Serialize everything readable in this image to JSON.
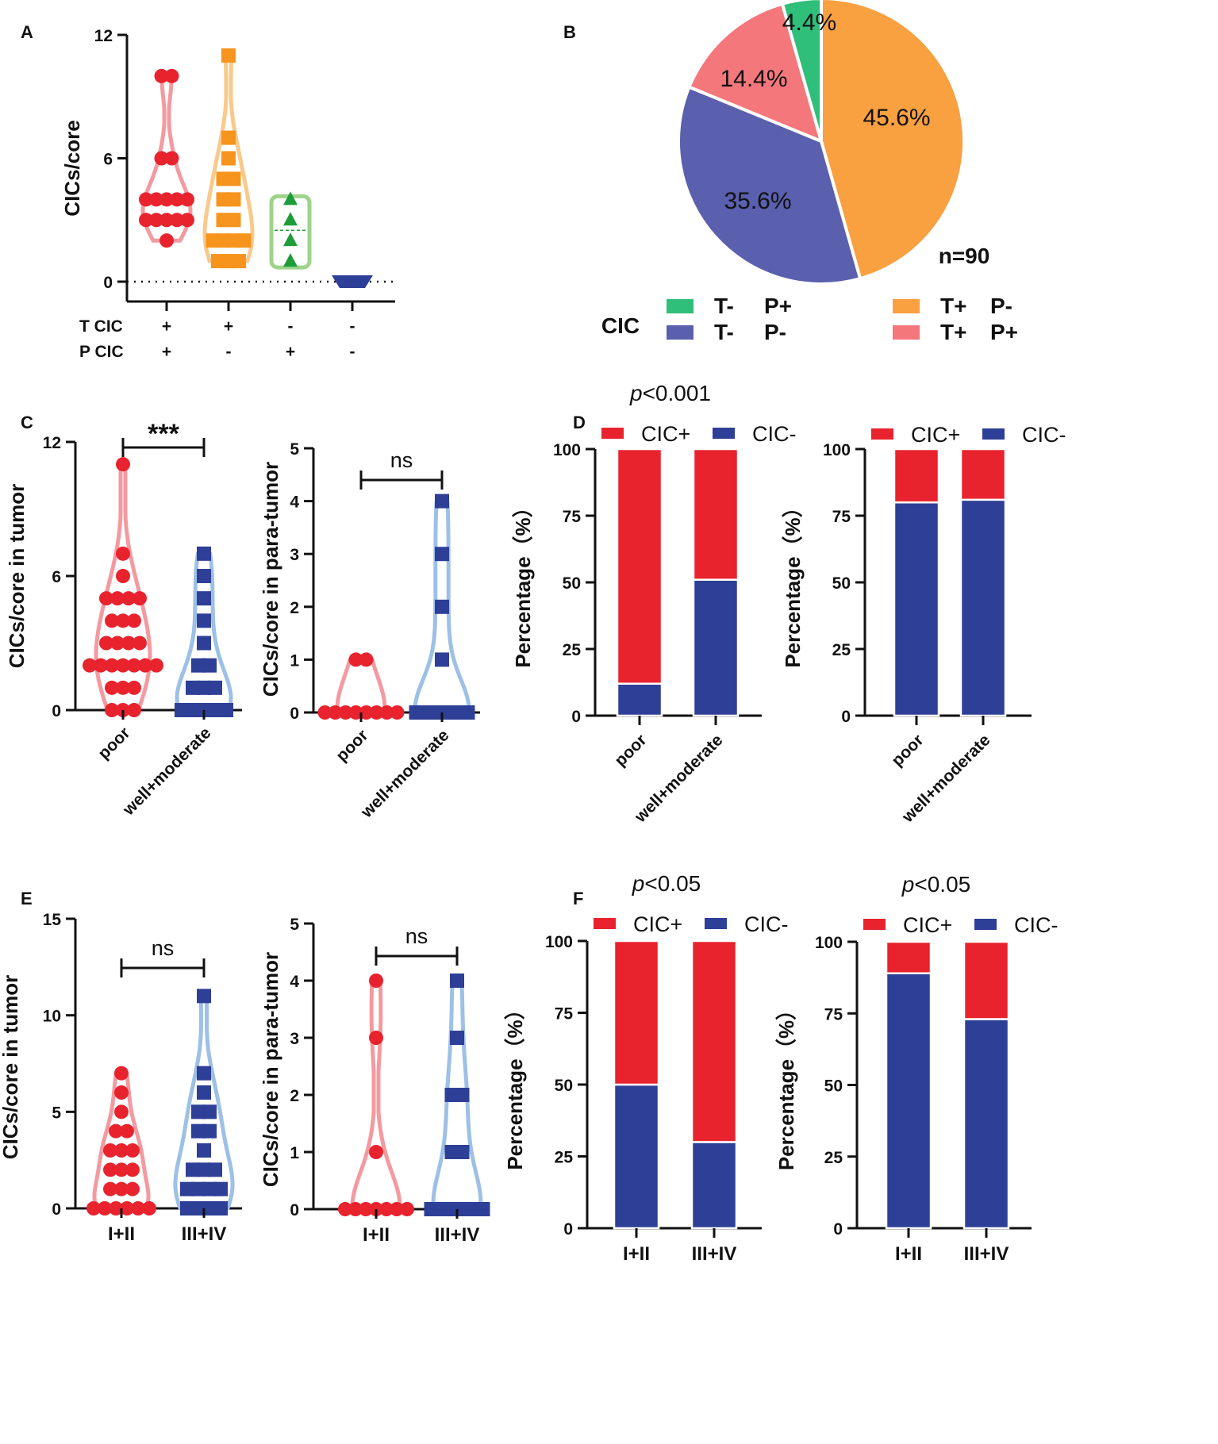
{
  "chart_data": [
    {
      "id": "A",
      "type": "scatter",
      "label": "A",
      "ylabel": "CICs/core",
      "ylim": [
        0,
        12
      ],
      "yticks": [
        0,
        6,
        12
      ],
      "row_labels": [
        "T CIC",
        "P CIC"
      ],
      "groups": [
        {
          "t": "+",
          "p": "+",
          "color": "#e8232e",
          "violin": "#f39aa0",
          "marker": "circle",
          "points": [
            10,
            10,
            6,
            6,
            4,
            4,
            4,
            4,
            4,
            3,
            3,
            3,
            3,
            3,
            2
          ]
        },
        {
          "t": "+",
          "p": "-",
          "color": "#f7941d",
          "violin": "#f9c98b",
          "marker": "square",
          "points": [
            11,
            7,
            6,
            5,
            5,
            4,
            4,
            3,
            3,
            2,
            2,
            2,
            2,
            1,
            1,
            1
          ]
        },
        {
          "t": "-",
          "p": "+",
          "color": "#1f9c3a",
          "violin": "#9fd38a",
          "marker": "triangle",
          "points": [
            4,
            3,
            2,
            1
          ]
        },
        {
          "t": "-",
          "p": "-",
          "color": "#2e3f97",
          "violin": "#2e3f97",
          "marker": "down-triangle",
          "points": [
            0,
            0,
            0,
            0,
            0
          ]
        }
      ]
    },
    {
      "id": "B",
      "type": "pie",
      "label": "B",
      "n_label": "n=90",
      "legend_title": "CIC",
      "slices": [
        {
          "label": "T+ P-",
          "t": "T+",
          "p": "P-",
          "value": 45.6,
          "text": "45.6%",
          "color": "#f9a040"
        },
        {
          "label": "T- P-",
          "t": "T-",
          "p": "P-",
          "value": 35.6,
          "text": "35.6%",
          "color": "#5a5fae"
        },
        {
          "label": "T+ P+",
          "t": "T+",
          "p": "P+",
          "value": 14.4,
          "text": "14.4%",
          "color": "#f4777c"
        },
        {
          "label": "T- P+",
          "t": "T-",
          "p": "P+",
          "value": 4.4,
          "text": "4.4%",
          "color": "#2fbf7a"
        }
      ]
    },
    {
      "id": "C1",
      "type": "scatter",
      "label": "C",
      "ylabel": "CICs/core in tumor",
      "ylim": [
        0,
        12
      ],
      "yticks": [
        0,
        6,
        12
      ],
      "categories": [
        "poor",
        "well+moderate"
      ],
      "significance": "***",
      "groups": [
        {
          "color": "#e8232e",
          "violin": "#f39aa0",
          "marker": "circle",
          "points": [
            11,
            7,
            6,
            5,
            5,
            5,
            5,
            4,
            4,
            4,
            3,
            3,
            3,
            3,
            2,
            2,
            2,
            2,
            2,
            2,
            2,
            1,
            1,
            1,
            0,
            0,
            0
          ]
        },
        {
          "color": "#2e3f97",
          "violin": "#9dc0e6",
          "marker": "square",
          "points": [
            7,
            6,
            5,
            4,
            3,
            2,
            2,
            1,
            1,
            1,
            0,
            0,
            0,
            0,
            0
          ]
        }
      ]
    },
    {
      "id": "C2",
      "type": "scatter",
      "ylabel": "CICs/core in para-tumor",
      "ylim": [
        0,
        5
      ],
      "yticks": [
        0,
        1,
        2,
        3,
        4,
        5
      ],
      "categories": [
        "poor",
        "well+moderate"
      ],
      "significance": "ns",
      "groups": [
        {
          "color": "#e8232e",
          "violin": "#f39aa0",
          "marker": "circle",
          "points": [
            1,
            1,
            0,
            0,
            0,
            0,
            0,
            0,
            0,
            0
          ]
        },
        {
          "color": "#2e3f97",
          "violin": "#9dc0e6",
          "marker": "square",
          "points": [
            4,
            3,
            2,
            1,
            0,
            0,
            0,
            0,
            0,
            0
          ]
        }
      ]
    },
    {
      "id": "D1",
      "type": "bar",
      "label": "D",
      "stacked": true,
      "pvalue_prefix": "p",
      "pvalue_suffix": "<0.001",
      "ylabel": "Percentage（%）",
      "ylim": [
        0,
        100
      ],
      "yticks": [
        0,
        25,
        50,
        75,
        100
      ],
      "categories": [
        "poor",
        "well+moderate"
      ],
      "series": [
        {
          "name": "CIC-",
          "color": "#2e3f97",
          "values": [
            12,
            51
          ]
        },
        {
          "name": "CIC+",
          "color": "#e8232e",
          "values": [
            88,
            49
          ]
        }
      ]
    },
    {
      "id": "D2",
      "type": "bar",
      "stacked": true,
      "ylabel": "Percentage（%）",
      "ylim": [
        0,
        100
      ],
      "yticks": [
        0,
        25,
        50,
        75,
        100
      ],
      "categories": [
        "poor",
        "well+moderate"
      ],
      "series": [
        {
          "name": "CIC-",
          "color": "#2e3f97",
          "values": [
            80,
            81
          ]
        },
        {
          "name": "CIC+",
          "color": "#e8232e",
          "values": [
            20,
            19
          ]
        }
      ]
    },
    {
      "id": "E1",
      "type": "scatter",
      "label": "E",
      "ylabel": "CICs/core in tumor",
      "ylim": [
        0,
        15
      ],
      "yticks": [
        0,
        5,
        10,
        15
      ],
      "categories": [
        "I+II",
        "III+IV"
      ],
      "significance": "ns",
      "groups": [
        {
          "color": "#e8232e",
          "violin": "#f39aa0",
          "marker": "circle",
          "points": [
            7,
            6,
            5,
            4,
            4,
            3,
            3,
            3,
            2,
            2,
            2,
            1,
            1,
            1,
            0,
            0,
            0,
            0,
            0,
            0
          ]
        },
        {
          "color": "#2e3f97",
          "violin": "#9dc0e6",
          "marker": "square",
          "points": [
            11,
            7,
            6,
            5,
            5,
            4,
            4,
            3,
            2,
            2,
            2,
            1,
            1,
            1,
            1,
            0,
            0,
            0,
            0
          ]
        }
      ]
    },
    {
      "id": "E2",
      "type": "scatter",
      "ylabel": "CICs/core in para-tumor",
      "ylim": [
        0,
        5
      ],
      "yticks": [
        0,
        1,
        2,
        3,
        4,
        5
      ],
      "categories": [
        "I+II",
        "III+IV"
      ],
      "significance": "ns",
      "groups": [
        {
          "color": "#e8232e",
          "violin": "#f39aa0",
          "marker": "circle",
          "points": [
            4,
            3,
            1,
            0,
            0,
            0,
            0,
            0,
            0,
            0
          ]
        },
        {
          "color": "#2e3f97",
          "violin": "#9dc0e6",
          "marker": "square",
          "points": [
            4,
            3,
            2,
            2,
            1,
            1,
            0,
            0,
            0,
            0,
            0,
            0
          ]
        }
      ]
    },
    {
      "id": "F1",
      "type": "bar",
      "label": "F",
      "stacked": true,
      "pvalue_prefix": "p",
      "pvalue_suffix": "<0.05",
      "ylabel": "Percentage（%）",
      "ylim": [
        0,
        100
      ],
      "yticks": [
        0,
        25,
        50,
        75,
        100
      ],
      "categories": [
        "I+II",
        "III+IV"
      ],
      "series": [
        {
          "name": "CIC-",
          "color": "#2e3f97",
          "values": [
            50,
            30
          ]
        },
        {
          "name": "CIC+",
          "color": "#e8232e",
          "values": [
            50,
            70
          ]
        }
      ]
    },
    {
      "id": "F2",
      "type": "bar",
      "stacked": true,
      "pvalue_prefix": "p",
      "pvalue_suffix": "<0.05",
      "ylabel": "Percentage（%）",
      "ylim": [
        0,
        100
      ],
      "yticks": [
        0,
        25,
        50,
        75,
        100
      ],
      "categories": [
        "I+II",
        "III+IV"
      ],
      "series": [
        {
          "name": "CIC-",
          "color": "#2e3f97",
          "values": [
            89,
            73
          ]
        },
        {
          "name": "CIC+",
          "color": "#e8232e",
          "values": [
            11,
            27
          ]
        }
      ]
    }
  ]
}
